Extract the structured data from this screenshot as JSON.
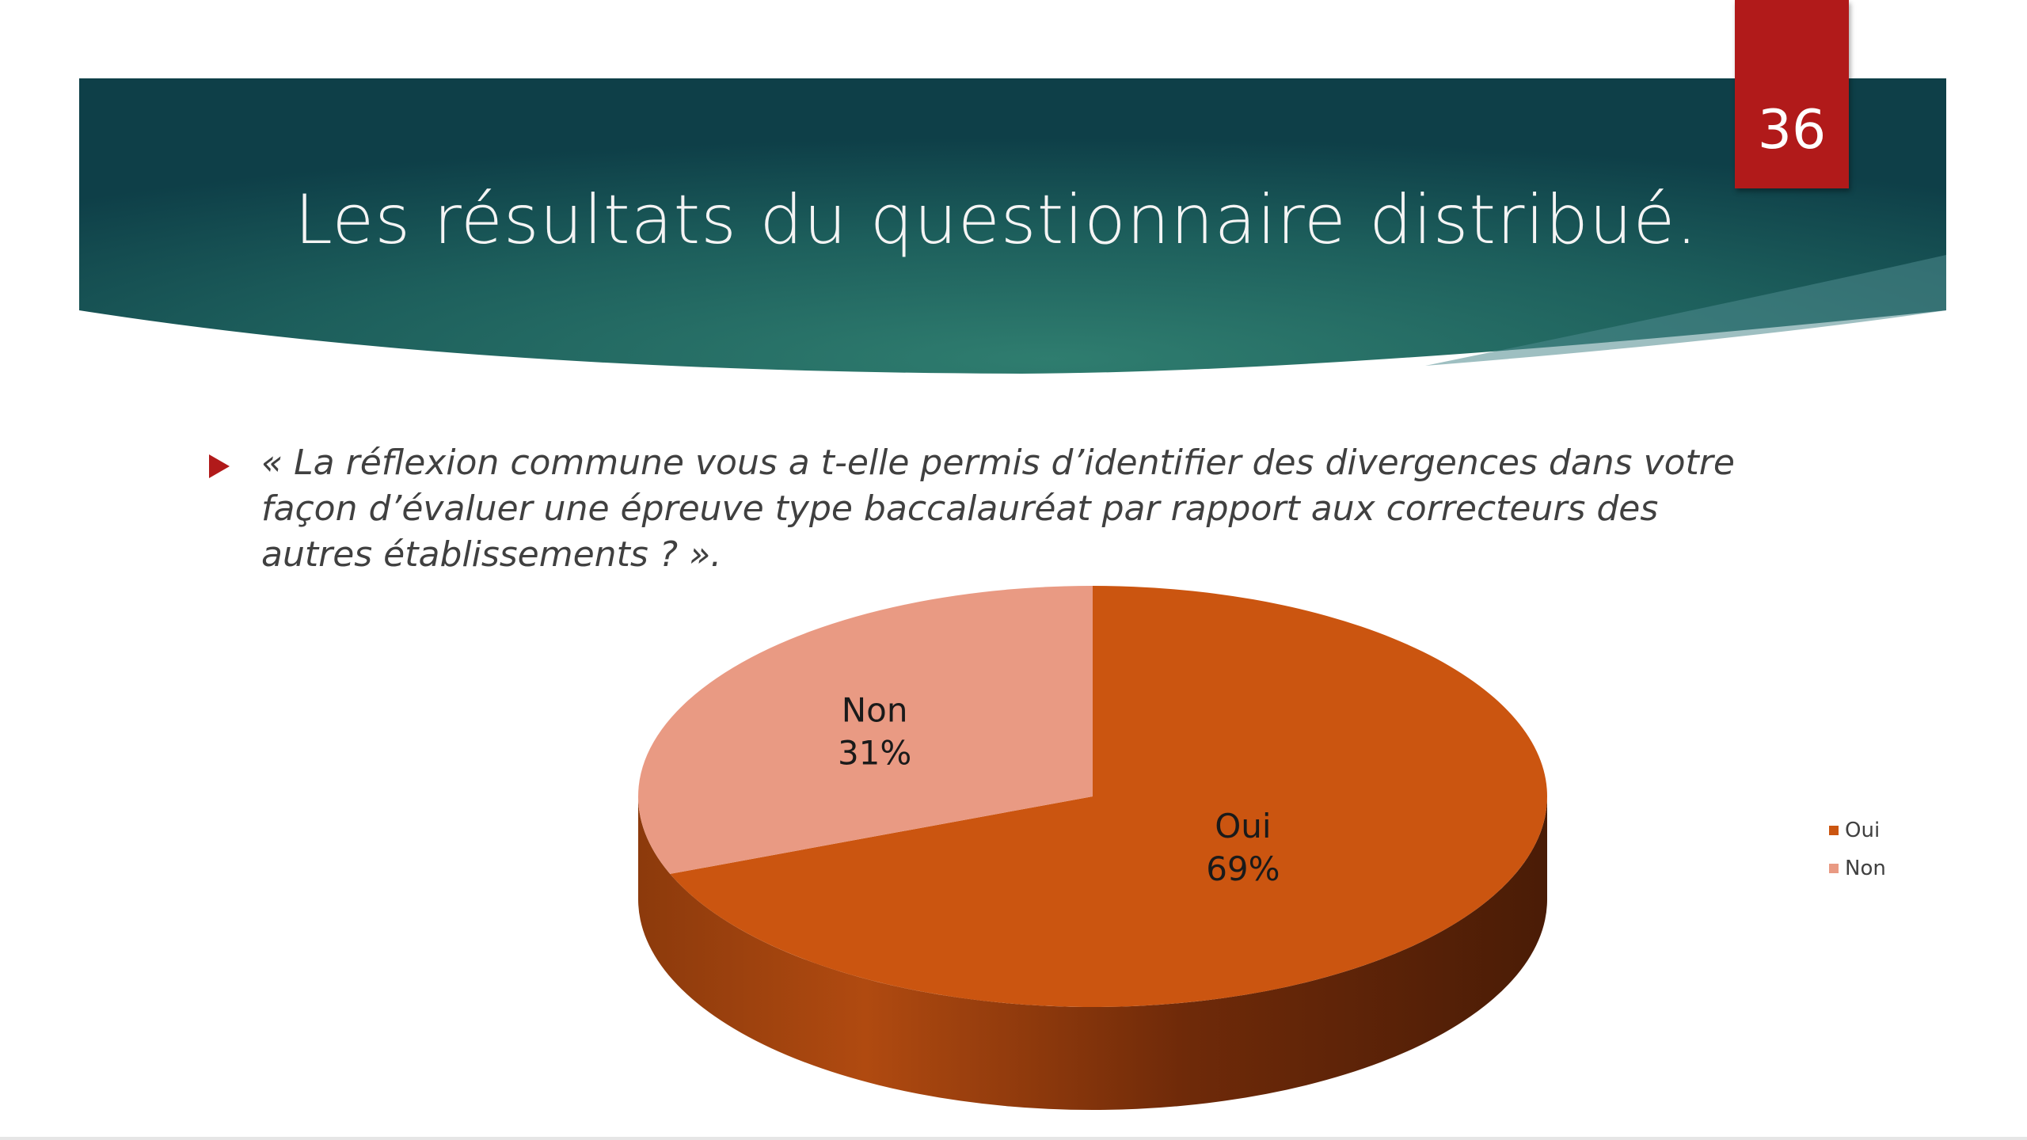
{
  "slide": {
    "page_number": "36",
    "title": "Les résultats du questionnaire distribué.",
    "question_lines": [
      "« La réflexion commune vous a t-elle permis d’identifier des divergences dans votre",
      "façon d’évaluer une épreuve type baccalauréat par rapport aux correcteurs des",
      "autres établissements ? »."
    ]
  },
  "colors": {
    "header_dark": "#0e3f48",
    "header_teal": "#2e7b6e",
    "page_badge": "#b11a1a",
    "oui": "#cb5510",
    "oui_side": "#5a2208",
    "non": "#e99a83",
    "non_side": "#b86f5d"
  },
  "chart_data": {
    "type": "pie",
    "style": "3d",
    "legend_placement": "right",
    "slices": [
      {
        "label": "Oui",
        "percent": 69,
        "percent_label": "69%",
        "color": "#cb5510"
      },
      {
        "label": "Non",
        "percent": 31,
        "percent_label": "31%",
        "color": "#e99a83"
      }
    ]
  }
}
